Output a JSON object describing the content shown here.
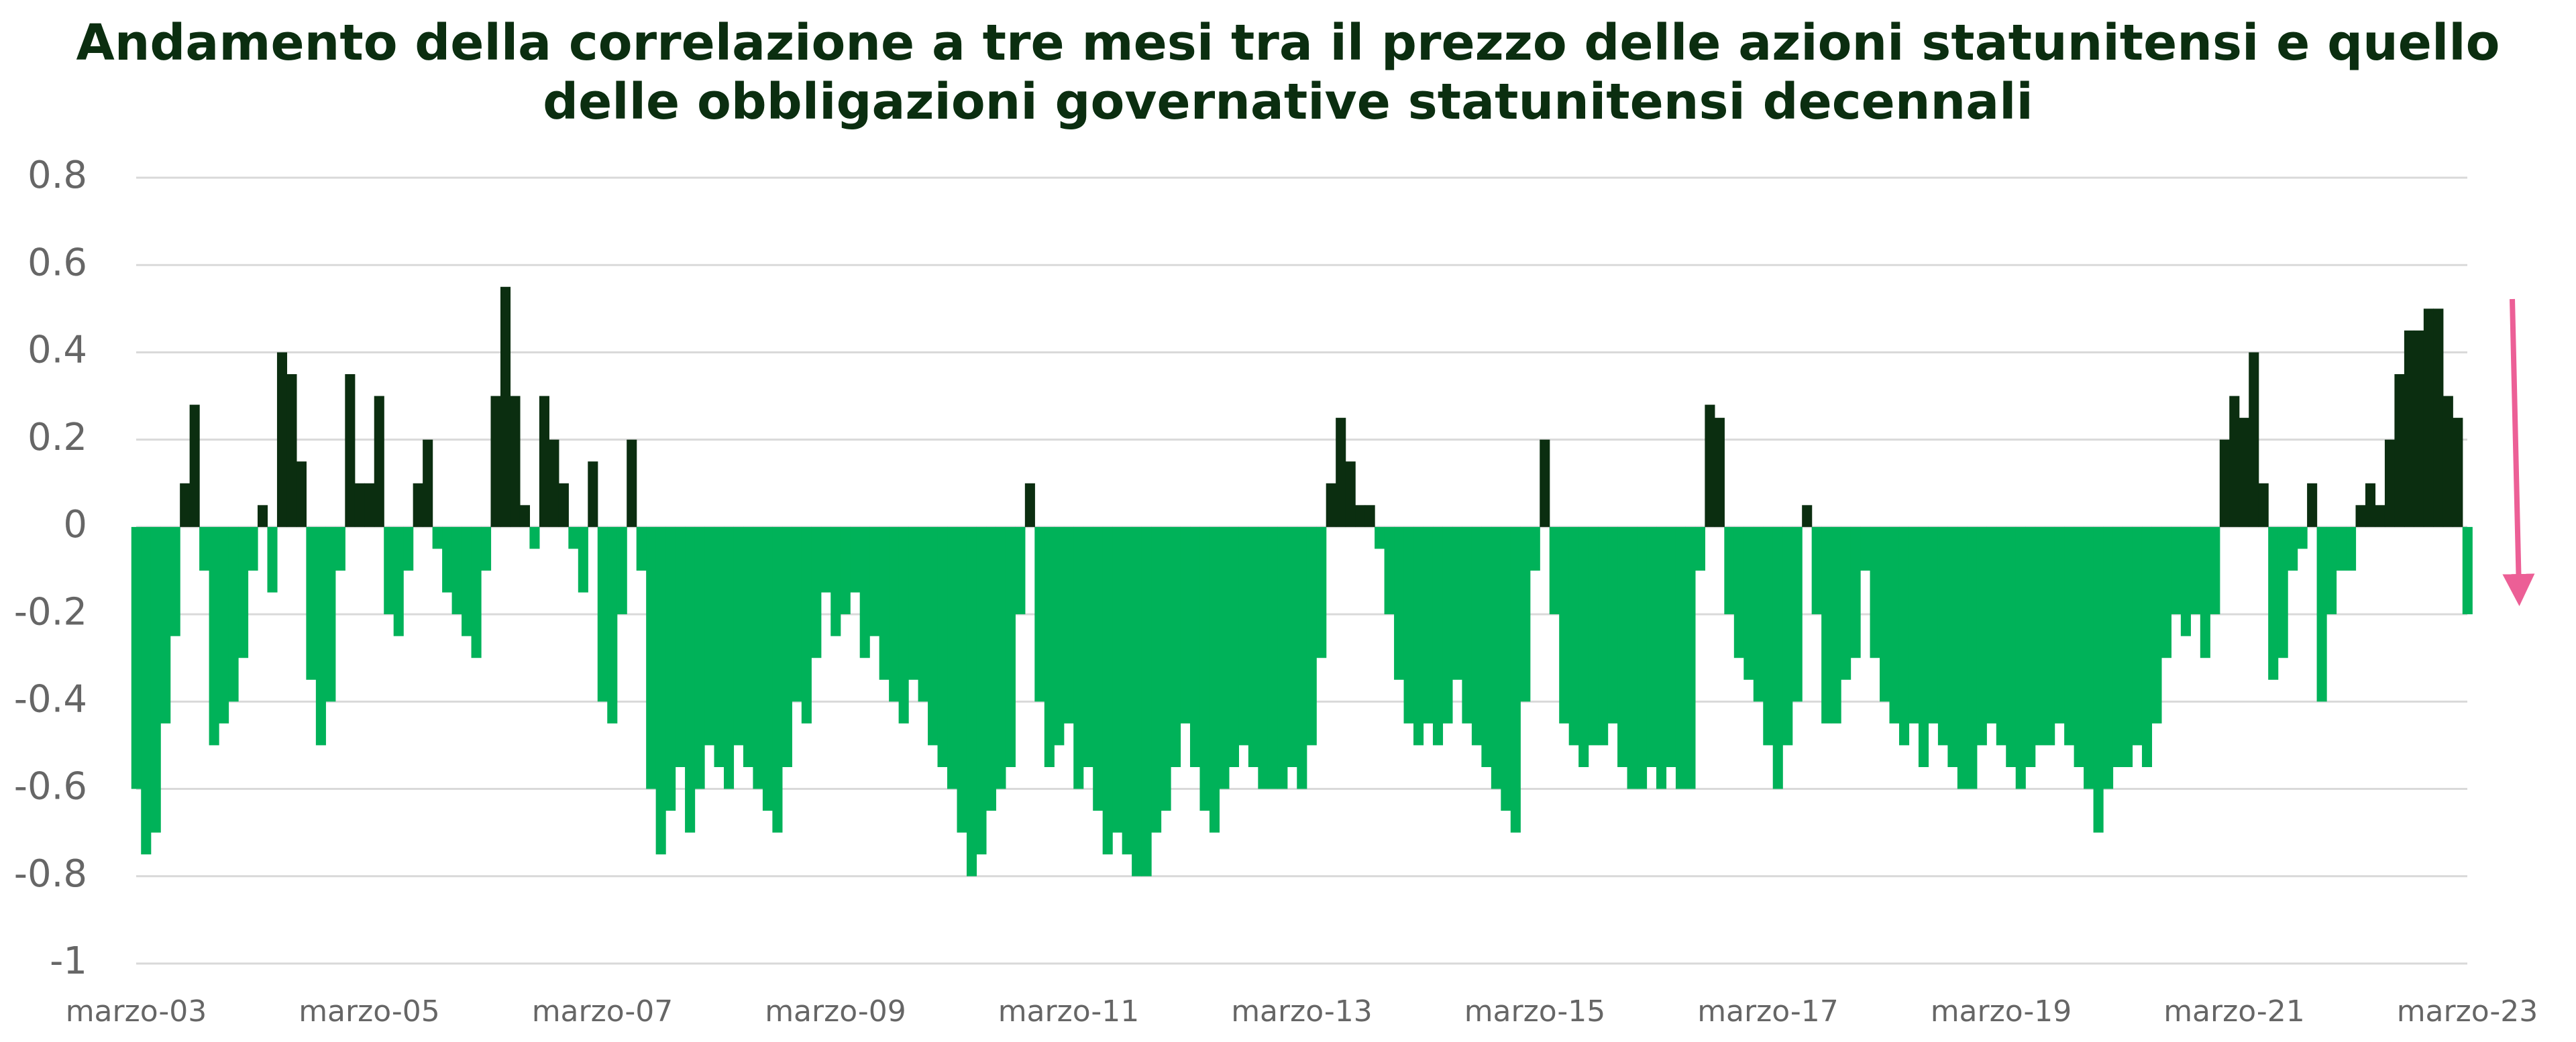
{
  "chart_data": {
    "type": "bar",
    "title": "Andamento della correlazione a tre mesi tra il prezzo delle azioni statunitensi e quello delle obbligazioni governative statunitensi decennali",
    "categories": [
      "marzo-03",
      null,
      null,
      null,
      null,
      null,
      null,
      null,
      null,
      null,
      null,
      null,
      null,
      null,
      null,
      null,
      null,
      null,
      null,
      null,
      null,
      null,
      null,
      null,
      "marzo-05",
      null,
      null,
      null,
      null,
      null,
      null,
      null,
      null,
      null,
      null,
      null,
      null,
      null,
      null,
      null,
      null,
      null,
      null,
      null,
      null,
      null,
      null,
      null,
      "marzo-07",
      null,
      null,
      null,
      null,
      null,
      null,
      null,
      null,
      null,
      null,
      null,
      null,
      null,
      null,
      null,
      null,
      null,
      null,
      null,
      null,
      null,
      null,
      null,
      "marzo-09",
      null,
      null,
      null,
      null,
      null,
      null,
      null,
      null,
      null,
      null,
      null,
      null,
      null,
      null,
      null,
      null,
      null,
      null,
      null,
      null,
      null,
      null,
      null,
      "marzo-11",
      null,
      null,
      null,
      null,
      null,
      null,
      null,
      null,
      null,
      null,
      null,
      null,
      null,
      null,
      null,
      null,
      null,
      null,
      null,
      null,
      null,
      null,
      null,
      "marzo-13",
      null,
      null,
      null,
      null,
      null,
      null,
      null,
      null,
      null,
      null,
      null,
      null,
      null,
      null,
      null,
      null,
      null,
      null,
      null,
      null,
      null,
      null,
      null,
      "marzo-15",
      null,
      null,
      null,
      null,
      null,
      null,
      null,
      null,
      null,
      null,
      null,
      null,
      null,
      null,
      null,
      null,
      null,
      null,
      null,
      null,
      null,
      null,
      null,
      "marzo-17",
      null,
      null,
      null,
      null,
      null,
      null,
      null,
      null,
      null,
      null,
      null,
      null,
      null,
      null,
      null,
      null,
      null,
      null,
      null,
      null,
      null,
      null,
      null,
      "marzo-19",
      null,
      null,
      null,
      null,
      null,
      null,
      null,
      null,
      null,
      null,
      null,
      null,
      null,
      null,
      null,
      null,
      null,
      null,
      null,
      null,
      null,
      null,
      null,
      "marzo-21",
      null,
      null,
      null,
      null,
      null,
      null,
      null,
      null,
      null,
      null,
      null,
      null,
      null,
      null,
      null,
      null,
      null,
      null,
      null,
      null,
      null,
      null,
      null,
      "marzo-23"
    ],
    "values": [
      -0.6,
      -0.75,
      -0.7,
      -0.45,
      -0.25,
      0.1,
      0.28,
      -0.1,
      -0.5,
      -0.45,
      -0.4,
      -0.3,
      -0.1,
      0.05,
      -0.15,
      0.4,
      0.35,
      0.15,
      -0.35,
      -0.5,
      -0.4,
      -0.1,
      0.35,
      0.1,
      0.1,
      0.3,
      -0.2,
      -0.25,
      -0.1,
      0.1,
      0.2,
      -0.05,
      -0.15,
      -0.2,
      -0.25,
      -0.3,
      -0.1,
      0.3,
      0.55,
      0.3,
      0.05,
      -0.05,
      0.3,
      0.2,
      0.1,
      -0.05,
      -0.15,
      0.15,
      -0.4,
      -0.45,
      -0.2,
      0.2,
      -0.1,
      -0.6,
      -0.75,
      -0.65,
      -0.55,
      -0.7,
      -0.6,
      -0.5,
      -0.55,
      -0.6,
      -0.5,
      -0.55,
      -0.6,
      -0.65,
      -0.7,
      -0.55,
      -0.4,
      -0.45,
      -0.3,
      -0.15,
      -0.25,
      -0.2,
      -0.15,
      -0.3,
      -0.25,
      -0.35,
      -0.4,
      -0.45,
      -0.35,
      -0.4,
      -0.5,
      -0.55,
      -0.6,
      -0.7,
      -0.8,
      -0.75,
      -0.65,
      -0.6,
      -0.55,
      -0.2,
      0.1,
      -0.4,
      -0.55,
      -0.5,
      -0.45,
      -0.6,
      -0.55,
      -0.65,
      -0.75,
      -0.7,
      -0.75,
      -0.8,
      -0.8,
      -0.7,
      -0.65,
      -0.55,
      -0.45,
      -0.55,
      -0.65,
      -0.7,
      -0.6,
      -0.55,
      -0.5,
      -0.55,
      -0.6,
      -0.6,
      -0.6,
      -0.55,
      -0.6,
      -0.5,
      -0.3,
      0.1,
      0.25,
      0.15,
      0.05,
      0.05,
      -0.05,
      -0.2,
      -0.35,
      -0.45,
      -0.5,
      -0.45,
      -0.5,
      -0.45,
      -0.35,
      -0.45,
      -0.5,
      -0.55,
      -0.6,
      -0.65,
      -0.7,
      -0.4,
      -0.1,
      0.2,
      -0.2,
      -0.45,
      -0.5,
      -0.55,
      -0.5,
      -0.5,
      -0.45,
      -0.55,
      -0.6,
      -0.6,
      -0.55,
      -0.6,
      -0.55,
      -0.6,
      -0.6,
      -0.1,
      0.28,
      0.25,
      -0.2,
      -0.3,
      -0.35,
      -0.4,
      -0.5,
      -0.6,
      -0.5,
      -0.4,
      0.05,
      -0.2,
      -0.45,
      -0.45,
      -0.35,
      -0.3,
      -0.1,
      -0.3,
      -0.4,
      -0.45,
      -0.5,
      -0.45,
      -0.55,
      -0.45,
      -0.5,
      -0.55,
      -0.6,
      -0.6,
      -0.5,
      -0.45,
      -0.5,
      -0.55,
      -0.6,
      -0.55,
      -0.5,
      -0.5,
      -0.45,
      -0.5,
      -0.55,
      -0.6,
      -0.7,
      -0.6,
      -0.55,
      -0.55,
      -0.5,
      -0.55,
      -0.45,
      -0.3,
      -0.2,
      -0.25,
      -0.2,
      -0.3,
      -0.2,
      0.2,
      0.3,
      0.25,
      0.4,
      0.1,
      -0.35,
      -0.3,
      -0.1,
      -0.05,
      0.1,
      -0.4,
      -0.2,
      -0.1,
      -0.1,
      0.05,
      0.1,
      0.05,
      0.2,
      0.35,
      0.45,
      0.45,
      0.5,
      0.5,
      0.3,
      0.25,
      -0.2
    ],
    "positive_color": "#0b2e10",
    "negative_color": "#00b259",
    "ylim": [
      -1,
      0.8
    ],
    "yticks": [
      -1,
      -0.8,
      -0.6,
      -0.4,
      -0.2,
      0,
      0.2,
      0.4,
      0.6,
      0.8
    ],
    "grid": true
  }
}
